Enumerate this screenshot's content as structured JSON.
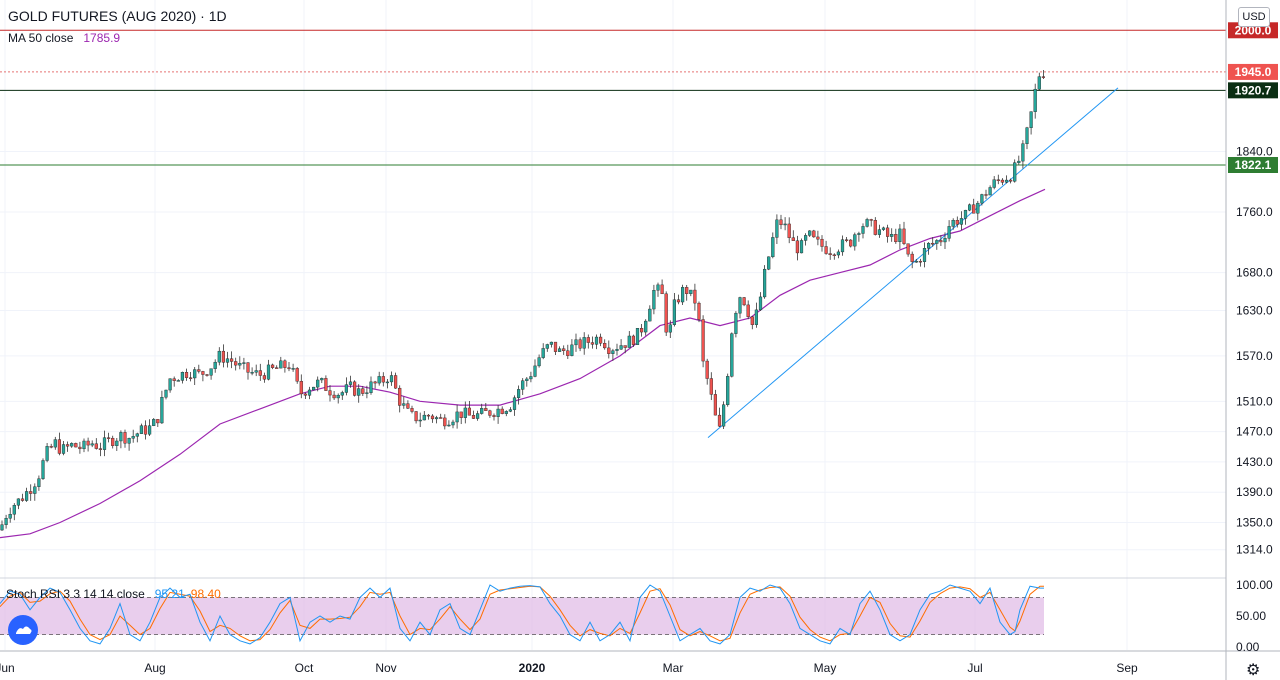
{
  "header": {
    "title": "GOLD FUTURES (AUG 2020) · 1D",
    "ma_label": "MA 50 close",
    "ma_value": "1785.9"
  },
  "stoch": {
    "label": "Stoch RSI 3 3 14 14 close",
    "k_value": "95.21",
    "d_value": "98.40",
    "upper_band": 80,
    "lower_band": 20,
    "ticks": [
      "100.00",
      "50.00",
      "0.00"
    ]
  },
  "currency_label": "USD",
  "colors": {
    "up": "#26a69a",
    "down": "#ef5350",
    "ma": "#9c27b0",
    "trendline": "#2196f3",
    "stoch_k": "#2196f3",
    "stoch_d": "#ff6d00",
    "resistance": "#c62828",
    "price_level": "#e57373",
    "level_1920": "#0b2e13",
    "level_1822": "#2e7d32",
    "stoch_band": "#e1bee7"
  },
  "chart_data": {
    "type": "candlestick",
    "ylim": [
      1278,
      2040
    ],
    "x_ticks": [
      "Jun",
      "Aug",
      "Oct",
      "Nov",
      "2020",
      "Mar",
      "May",
      "Jul",
      "Sep"
    ],
    "y_ticks": [
      1314.0,
      1350.0,
      1390.0,
      1430.0,
      1470.0,
      1510.0,
      1570.0,
      1630.0,
      1680.0,
      1760.0,
      1840.0
    ],
    "levels": [
      {
        "label": "2000.0",
        "value": 2000.0,
        "style": "solid"
      },
      {
        "label": "1945.0",
        "value": 1945.0,
        "style": "dotted"
      },
      {
        "label": "1920.7",
        "value": 1920.7,
        "style": "solid"
      },
      {
        "label": "1822.1",
        "value": 1822.1,
        "style": "solid"
      }
    ],
    "close_path": [
      [
        0,
        1340
      ],
      [
        5,
        1358
      ],
      [
        12,
        1372
      ],
      [
        20,
        1380
      ],
      [
        30,
        1395
      ],
      [
        38,
        1410
      ],
      [
        46,
        1440
      ],
      [
        55,
        1455
      ],
      [
        62,
        1445
      ],
      [
        72,
        1452
      ],
      [
        82,
        1448
      ],
      [
        92,
        1455
      ],
      [
        100,
        1450
      ],
      [
        110,
        1458
      ],
      [
        120,
        1465
      ],
      [
        130,
        1462
      ],
      [
        140,
        1470
      ],
      [
        150,
        1475
      ],
      [
        157,
        1485
      ],
      [
        162,
        1510
      ],
      [
        170,
        1540
      ],
      [
        180,
        1545
      ],
      [
        190,
        1550
      ],
      [
        200,
        1545
      ],
      [
        210,
        1555
      ],
      [
        220,
        1570
      ],
      [
        230,
        1565
      ],
      [
        240,
        1555
      ],
      [
        250,
        1548
      ],
      [
        260,
        1545
      ],
      [
        270,
        1550
      ],
      [
        280,
        1555
      ],
      [
        290,
        1558
      ],
      [
        300,
        1520
      ],
      [
        310,
        1530
      ],
      [
        320,
        1535
      ],
      [
        330,
        1525
      ],
      [
        340,
        1520
      ],
      [
        350,
        1528
      ],
      [
        360,
        1522
      ],
      [
        370,
        1530
      ],
      [
        380,
        1535
      ],
      [
        390,
        1545
      ],
      [
        400,
        1510
      ],
      [
        410,
        1490
      ],
      [
        420,
        1488
      ],
      [
        430,
        1492
      ],
      [
        440,
        1485
      ],
      [
        450,
        1488
      ],
      [
        460,
        1495
      ],
      [
        470,
        1490
      ],
      [
        480,
        1492
      ],
      [
        490,
        1496
      ],
      [
        500,
        1500
      ],
      [
        510,
        1505
      ],
      [
        520,
        1530
      ],
      [
        530,
        1545
      ],
      [
        540,
        1570
      ],
      [
        550,
        1585
      ],
      [
        560,
        1575
      ],
      [
        570,
        1580
      ],
      [
        580,
        1585
      ],
      [
        590,
        1590
      ],
      [
        600,
        1595
      ],
      [
        610,
        1580
      ],
      [
        620,
        1585
      ],
      [
        630,
        1590
      ],
      [
        640,
        1600
      ],
      [
        650,
        1640
      ],
      [
        655,
        1660
      ],
      [
        662,
        1650
      ],
      [
        668,
        1590
      ],
      [
        675,
        1640
      ],
      [
        685,
        1660
      ],
      [
        690,
        1650
      ],
      [
        697,
        1640
      ],
      [
        703,
        1560
      ],
      [
        709,
        1530
      ],
      [
        715,
        1490
      ],
      [
        720,
        1470
      ],
      [
        727,
        1540
      ],
      [
        733,
        1620
      ],
      [
        740,
        1650
      ],
      [
        746,
        1640
      ],
      [
        752,
        1610
      ],
      [
        758,
        1630
      ],
      [
        765,
        1680
      ],
      [
        772,
        1720
      ],
      [
        778,
        1750
      ],
      [
        785,
        1740
      ],
      [
        792,
        1720
      ],
      [
        800,
        1710
      ],
      [
        808,
        1730
      ],
      [
        815,
        1720
      ],
      [
        822,
        1715
      ],
      [
        830,
        1710
      ],
      [
        840,
        1715
      ],
      [
        850,
        1720
      ],
      [
        858,
        1740
      ],
      [
        865,
        1745
      ],
      [
        872,
        1740
      ],
      [
        880,
        1735
      ],
      [
        890,
        1725
      ],
      [
        900,
        1730
      ],
      [
        908,
        1700
      ],
      [
        914,
        1690
      ],
      [
        920,
        1700
      ],
      [
        928,
        1715
      ],
      [
        935,
        1720
      ],
      [
        942,
        1725
      ],
      [
        950,
        1745
      ],
      [
        958,
        1750
      ],
      [
        966,
        1755
      ],
      [
        972,
        1765
      ],
      [
        980,
        1775
      ],
      [
        988,
        1790
      ],
      [
        996,
        1800
      ],
      [
        1004,
        1805
      ],
      [
        1012,
        1810
      ],
      [
        1018,
        1825
      ],
      [
        1024,
        1845
      ],
      [
        1028,
        1870
      ],
      [
        1032,
        1895
      ],
      [
        1036,
        1925
      ],
      [
        1040,
        1945
      ],
      [
        1044,
        1945
      ]
    ],
    "ma_path": [
      [
        0,
        1330
      ],
      [
        30,
        1335
      ],
      [
        60,
        1350
      ],
      [
        100,
        1375
      ],
      [
        140,
        1405
      ],
      [
        180,
        1440
      ],
      [
        220,
        1480
      ],
      [
        260,
        1500
      ],
      [
        300,
        1520
      ],
      [
        330,
        1530
      ],
      [
        360,
        1530
      ],
      [
        390,
        1522
      ],
      [
        420,
        1510
      ],
      [
        460,
        1505
      ],
      [
        500,
        1505
      ],
      [
        540,
        1520
      ],
      [
        580,
        1540
      ],
      [
        620,
        1570
      ],
      [
        660,
        1610
      ],
      [
        690,
        1620
      ],
      [
        720,
        1610
      ],
      [
        750,
        1620
      ],
      [
        780,
        1650
      ],
      [
        810,
        1670
      ],
      [
        840,
        1680
      ],
      [
        870,
        1690
      ],
      [
        900,
        1710
      ],
      [
        930,
        1725
      ],
      [
        960,
        1735
      ],
      [
        990,
        1755
      ],
      [
        1020,
        1775
      ],
      [
        1045,
        1790
      ]
    ],
    "trendline": [
      [
        708,
        1462
      ],
      [
        1118,
        1924
      ]
    ],
    "stoch_k": [
      [
        0,
        70
      ],
      [
        10,
        90
      ],
      [
        20,
        85
      ],
      [
        30,
        60
      ],
      [
        40,
        80
      ],
      [
        50,
        95
      ],
      [
        60,
        88
      ],
      [
        70,
        60
      ],
      [
        80,
        30
      ],
      [
        90,
        10
      ],
      [
        100,
        5
      ],
      [
        110,
        30
      ],
      [
        120,
        70
      ],
      [
        130,
        20
      ],
      [
        140,
        10
      ],
      [
        150,
        40
      ],
      [
        160,
        80
      ],
      [
        170,
        95
      ],
      [
        180,
        80
      ],
      [
        190,
        85
      ],
      [
        200,
        40
      ],
      [
        210,
        10
      ],
      [
        220,
        50
      ],
      [
        230,
        20
      ],
      [
        240,
        10
      ],
      [
        250,
        5
      ],
      [
        260,
        15
      ],
      [
        270,
        40
      ],
      [
        280,
        70
      ],
      [
        290,
        80
      ],
      [
        300,
        10
      ],
      [
        310,
        40
      ],
      [
        320,
        50
      ],
      [
        330,
        40
      ],
      [
        340,
        50
      ],
      [
        350,
        45
      ],
      [
        360,
        80
      ],
      [
        370,
        95
      ],
      [
        380,
        80
      ],
      [
        390,
        95
      ],
      [
        400,
        30
      ],
      [
        410,
        10
      ],
      [
        420,
        40
      ],
      [
        430,
        20
      ],
      [
        440,
        60
      ],
      [
        450,
        70
      ],
      [
        460,
        30
      ],
      [
        470,
        20
      ],
      [
        480,
        60
      ],
      [
        490,
        100
      ],
      [
        500,
        90
      ],
      [
        510,
        95
      ],
      [
        520,
        98
      ],
      [
        530,
        99
      ],
      [
        540,
        97
      ],
      [
        550,
        70
      ],
      [
        560,
        50
      ],
      [
        570,
        20
      ],
      [
        580,
        10
      ],
      [
        590,
        40
      ],
      [
        600,
        10
      ],
      [
        610,
        20
      ],
      [
        620,
        40
      ],
      [
        630,
        10
      ],
      [
        640,
        80
      ],
      [
        650,
        100
      ],
      [
        660,
        90
      ],
      [
        670,
        50
      ],
      [
        680,
        10
      ],
      [
        690,
        20
      ],
      [
        700,
        30
      ],
      [
        710,
        10
      ],
      [
        720,
        5
      ],
      [
        730,
        20
      ],
      [
        740,
        80
      ],
      [
        750,
        95
      ],
      [
        760,
        90
      ],
      [
        770,
        100
      ],
      [
        780,
        95
      ],
      [
        790,
        70
      ],
      [
        800,
        30
      ],
      [
        810,
        20
      ],
      [
        820,
        10
      ],
      [
        830,
        5
      ],
      [
        840,
        30
      ],
      [
        850,
        20
      ],
      [
        860,
        70
      ],
      [
        870,
        90
      ],
      [
        880,
        60
      ],
      [
        890,
        20
      ],
      [
        900,
        10
      ],
      [
        910,
        20
      ],
      [
        920,
        60
      ],
      [
        930,
        85
      ],
      [
        940,
        90
      ],
      [
        950,
        100
      ],
      [
        960,
        95
      ],
      [
        970,
        90
      ],
      [
        980,
        70
      ],
      [
        990,
        95
      ],
      [
        1000,
        40
      ],
      [
        1010,
        20
      ],
      [
        1015,
        25
      ],
      [
        1020,
        60
      ],
      [
        1030,
        98
      ],
      [
        1040,
        95
      ],
      [
        1044,
        95
      ]
    ],
    "stoch_d": [
      [
        0,
        65
      ],
      [
        10,
        82
      ],
      [
        20,
        88
      ],
      [
        30,
        72
      ],
      [
        40,
        74
      ],
      [
        50,
        86
      ],
      [
        60,
        90
      ],
      [
        70,
        74
      ],
      [
        80,
        45
      ],
      [
        90,
        20
      ],
      [
        100,
        12
      ],
      [
        110,
        20
      ],
      [
        120,
        50
      ],
      [
        130,
        35
      ],
      [
        140,
        20
      ],
      [
        150,
        30
      ],
      [
        160,
        62
      ],
      [
        170,
        88
      ],
      [
        180,
        85
      ],
      [
        190,
        82
      ],
      [
        200,
        58
      ],
      [
        210,
        25
      ],
      [
        220,
        35
      ],
      [
        230,
        30
      ],
      [
        240,
        18
      ],
      [
        250,
        10
      ],
      [
        260,
        12
      ],
      [
        270,
        28
      ],
      [
        280,
        55
      ],
      [
        290,
        75
      ],
      [
        300,
        35
      ],
      [
        310,
        30
      ],
      [
        320,
        45
      ],
      [
        330,
        45
      ],
      [
        340,
        46
      ],
      [
        350,
        48
      ],
      [
        360,
        65
      ],
      [
        370,
        88
      ],
      [
        380,
        85
      ],
      [
        390,
        88
      ],
      [
        400,
        50
      ],
      [
        410,
        20
      ],
      [
        420,
        30
      ],
      [
        430,
        28
      ],
      [
        440,
        45
      ],
      [
        450,
        65
      ],
      [
        460,
        45
      ],
      [
        470,
        28
      ],
      [
        480,
        45
      ],
      [
        490,
        85
      ],
      [
        500,
        92
      ],
      [
        510,
        94
      ],
      [
        520,
        96
      ],
      [
        530,
        98
      ],
      [
        540,
        97
      ],
      [
        550,
        82
      ],
      [
        560,
        60
      ],
      [
        570,
        35
      ],
      [
        580,
        18
      ],
      [
        590,
        28
      ],
      [
        600,
        22
      ],
      [
        610,
        18
      ],
      [
        620,
        30
      ],
      [
        630,
        22
      ],
      [
        640,
        55
      ],
      [
        650,
        90
      ],
      [
        660,
        94
      ],
      [
        670,
        68
      ],
      [
        680,
        28
      ],
      [
        690,
        18
      ],
      [
        700,
        25
      ],
      [
        710,
        18
      ],
      [
        720,
        10
      ],
      [
        730,
        14
      ],
      [
        740,
        55
      ],
      [
        750,
        85
      ],
      [
        760,
        92
      ],
      [
        770,
        96
      ],
      [
        780,
        97
      ],
      [
        790,
        82
      ],
      [
        800,
        48
      ],
      [
        810,
        28
      ],
      [
        820,
        16
      ],
      [
        830,
        10
      ],
      [
        840,
        20
      ],
      [
        850,
        22
      ],
      [
        860,
        50
      ],
      [
        870,
        80
      ],
      [
        880,
        72
      ],
      [
        890,
        38
      ],
      [
        900,
        18
      ],
      [
        910,
        16
      ],
      [
        920,
        42
      ],
      [
        930,
        72
      ],
      [
        940,
        86
      ],
      [
        950,
        95
      ],
      [
        960,
        97
      ],
      [
        970,
        94
      ],
      [
        980,
        80
      ],
      [
        990,
        88
      ],
      [
        1000,
        60
      ],
      [
        1010,
        32
      ],
      [
        1015,
        26
      ],
      [
        1020,
        42
      ],
      [
        1030,
        85
      ],
      [
        1040,
        98
      ],
      [
        1044,
        98
      ]
    ]
  }
}
